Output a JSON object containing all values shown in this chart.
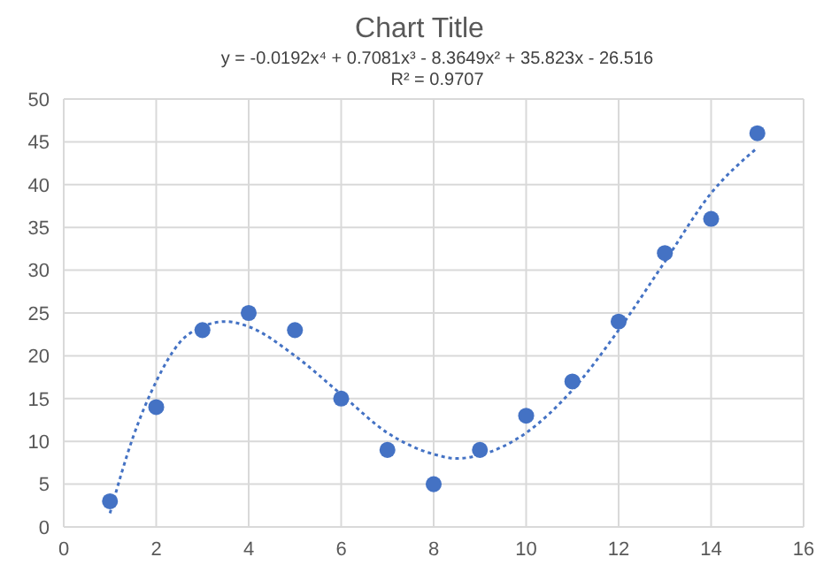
{
  "chart_data": {
    "type": "scatter",
    "title": "Chart Title",
    "annotations": [
      "y = -0.0192x⁴ + 0.7081x³ - 8.3649x² + 35.823x - 26.516",
      "R² = 0.9707"
    ],
    "x": [
      1,
      2,
      3,
      4,
      5,
      6,
      7,
      8,
      9,
      10,
      11,
      12,
      13,
      14,
      15
    ],
    "series": [
      {
        "type": "scatter",
        "color": "#4472c4",
        "marker": "circle",
        "values": [
          3,
          14,
          23,
          25,
          23,
          15,
          9,
          5,
          9,
          13,
          17,
          24,
          32,
          36,
          46
        ]
      },
      {
        "type": "line",
        "color": "#4472c4",
        "line_style": "dotted",
        "marker": "none",
        "x": [
          1,
          1.5,
          2,
          2.5,
          3,
          3.5,
          4,
          5,
          6,
          7,
          8,
          8.5,
          9,
          10,
          11,
          12,
          13,
          14,
          15
        ],
        "values": [
          1.6,
          10.5,
          17,
          21.5,
          23.4,
          24,
          23.4,
          20,
          15.5,
          11,
          8.5,
          8,
          8.4,
          11,
          16,
          23,
          31,
          39,
          44.3
        ]
      }
    ],
    "xlim": [
      0,
      16
    ],
    "xticks": [
      0,
      2,
      4,
      6,
      8,
      10,
      12,
      14,
      16
    ],
    "ylim": [
      0,
      50
    ],
    "yticks": [
      0,
      5,
      10,
      15,
      20,
      25,
      30,
      35,
      40,
      45,
      50
    ],
    "grid": true
  }
}
